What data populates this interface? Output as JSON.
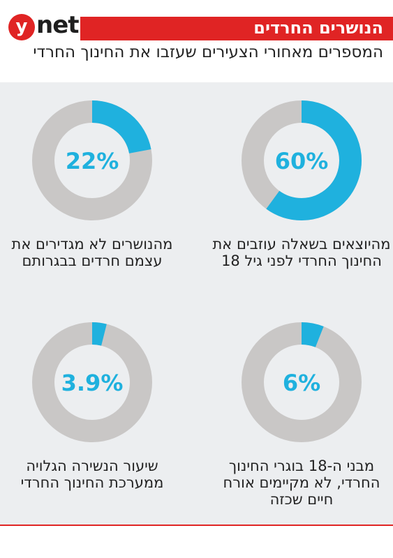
{
  "header": {
    "logo_y": "y",
    "logo_net": "net",
    "banner": "הנושרים החרדים",
    "subtitle": "המספרים מאחורי הצעירים שעזבו את החינוך החרדי"
  },
  "colors": {
    "accent": "#1fb1de",
    "remainder": "#c9c7c6",
    "brand_red": "#e02424"
  },
  "chart_data": [
    {
      "type": "pie",
      "style": "donut",
      "value_percent": 60,
      "value_label": "60%",
      "caption": "מהיוצאים בשאלה עוזבים את החינוך החרדי לפני גיל 18"
    },
    {
      "type": "pie",
      "style": "donut",
      "value_percent": 22,
      "value_label": "22%",
      "caption": "מהנושרים לא מגדירים את עצמם חרדים בבגרותם"
    },
    {
      "type": "pie",
      "style": "donut",
      "value_percent": 6,
      "value_label": "6%",
      "caption": "מבני ה-18 בוגרי החינוך החרדי, לא מקיימים אורח חיים שכזה"
    },
    {
      "type": "pie",
      "style": "donut",
      "value_percent": 3.9,
      "value_label": "3.9%",
      "caption": "שיעור הנשירה הגלויה ממערכת החינוך החרדי"
    }
  ]
}
